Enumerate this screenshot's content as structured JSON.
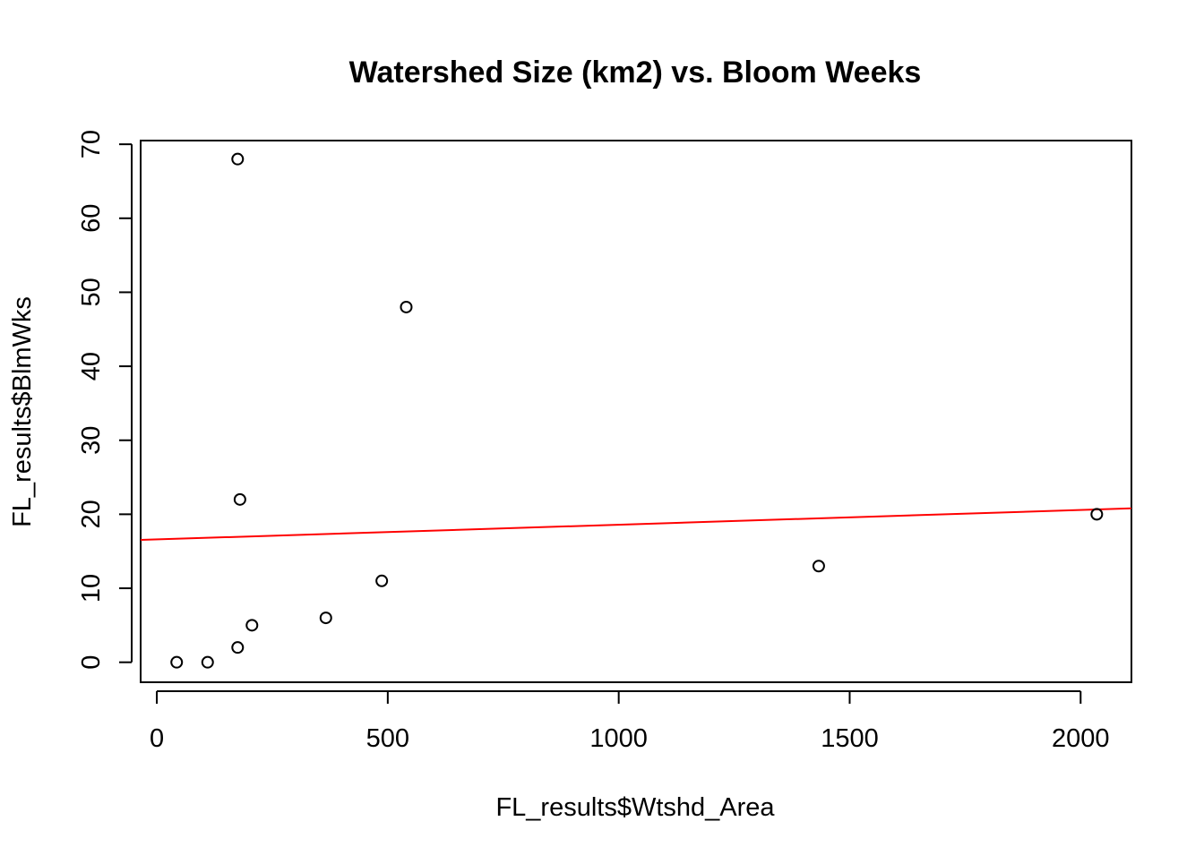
{
  "chart_data": {
    "type": "scatter",
    "title": "Watershed Size (km2) vs. Bloom Weeks",
    "xlabel": "FL_results$Wtshd_Area",
    "ylabel": "FL_results$BlmWks",
    "xlim": [
      -35,
      2110
    ],
    "ylim": [
      -2.7,
      70.5
    ],
    "x_ticks": [
      0,
      500,
      1000,
      1500,
      2000
    ],
    "y_ticks": [
      0,
      10,
      20,
      30,
      40,
      50,
      60,
      70
    ],
    "grid": false,
    "legend": "none",
    "points": [
      {
        "x": 175,
        "y": 68
      },
      {
        "x": 540,
        "y": 48
      },
      {
        "x": 180,
        "y": 22
      },
      {
        "x": 2035,
        "y": 20
      },
      {
        "x": 1433,
        "y": 13
      },
      {
        "x": 487,
        "y": 11
      },
      {
        "x": 366,
        "y": 6
      },
      {
        "x": 206,
        "y": 5
      },
      {
        "x": 175,
        "y": 2
      },
      {
        "x": 43,
        "y": 0
      },
      {
        "x": 110,
        "y": 0
      }
    ],
    "fit_line": {
      "intercept": 16.6,
      "slope": 0.00199,
      "color": "#ff0000"
    },
    "point_color": "#000000"
  }
}
